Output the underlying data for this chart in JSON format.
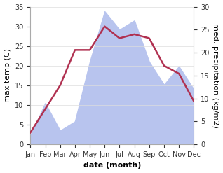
{
  "months": [
    "Jan",
    "Feb",
    "Mar",
    "Apr",
    "May",
    "Jun",
    "Jul",
    "Aug",
    "Sep",
    "Oct",
    "Nov",
    "Dec"
  ],
  "temp": [
    3,
    9,
    15,
    24,
    24,
    30,
    27,
    28,
    27,
    20,
    18,
    11
  ],
  "precip": [
    2,
    9,
    3,
    5,
    18,
    29,
    25,
    27,
    18,
    13,
    17,
    12
  ],
  "temp_color": "#b03050",
  "precip_fill_color": "#b8c4ee",
  "temp_ylim": [
    0,
    35
  ],
  "precip_ylim": [
    0,
    30
  ],
  "temp_yticks": [
    0,
    5,
    10,
    15,
    20,
    25,
    30,
    35
  ],
  "precip_yticks": [
    0,
    5,
    10,
    15,
    20,
    25,
    30
  ],
  "xlabel": "date (month)",
  "ylabel_left": "max temp (C)",
  "ylabel_right": "med. precipitation (kg/m2)",
  "bg_color": "#ffffff",
  "label_fontsize": 8,
  "tick_fontsize": 7,
  "linewidth": 1.8
}
